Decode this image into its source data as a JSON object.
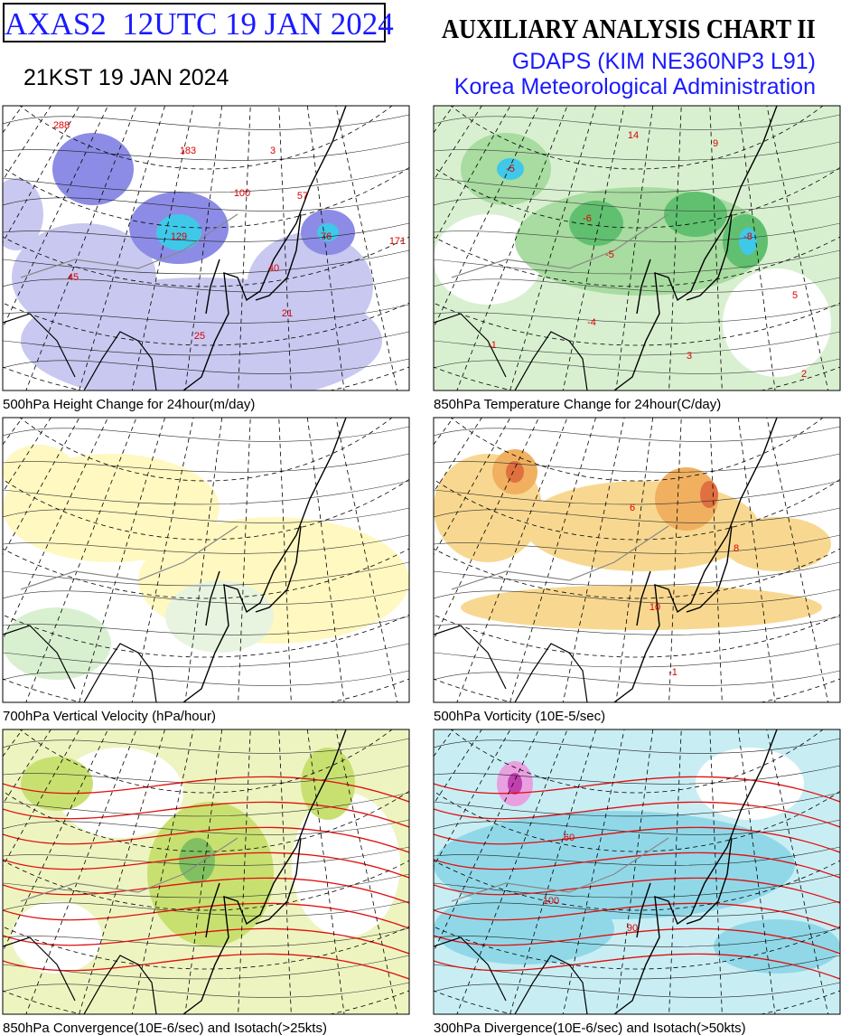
{
  "header": {
    "code": "AXAS2  12UTC 19 JAN 2024",
    "local_time": "21KST 19 JAN 2024",
    "title": "AUXILIARY ANALYSIS CHART II",
    "model": "GDAPS (KIM NE360NP3 L91)",
    "agency": "Korea Meteorological Administration"
  },
  "panels": [
    {
      "caption": "500hPa Height Change for 24hour(m/day)",
      "labels": [
        "288",
        "129",
        "76",
        "183",
        "100",
        "57",
        "40",
        "45",
        "21",
        "25",
        "3",
        "171"
      ]
    },
    {
      "caption": "850hPa Temperature Change for 24hour(C/day)",
      "labels": [
        "-5",
        "-6",
        "-5",
        "-8",
        "14",
        "9",
        "3",
        "5",
        "-1",
        "2",
        "-4"
      ]
    },
    {
      "caption": "700hPa Vertical Velocity (hPa/hour)",
      "labels": []
    },
    {
      "caption": "500hPa Vorticity (10E-5/sec)",
      "labels": [
        "10",
        "6",
        "-1",
        "8"
      ]
    },
    {
      "caption": "850hPa Convergence(10E-6/sec) and Isotach(>25kts)",
      "labels": []
    },
    {
      "caption": "300hPa Divergence(10E-6/sec) and Isotach(>50kts)",
      "labels": [
        "100",
        "90",
        "60"
      ]
    }
  ]
}
